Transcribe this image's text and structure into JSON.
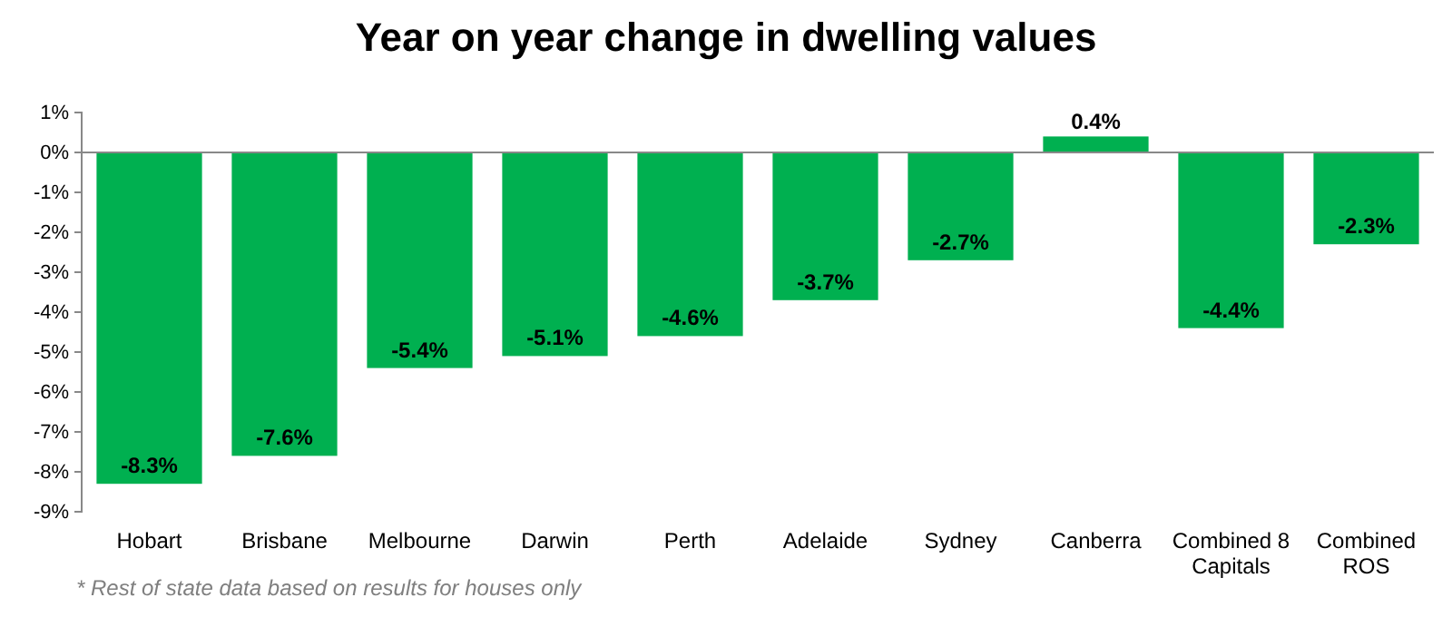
{
  "chart_data": {
    "type": "bar",
    "title": "Year on year change in dwelling values",
    "categories": [
      "Hobart",
      "Brisbane",
      "Melbourne",
      "Darwin",
      "Perth",
      "Adelaide",
      "Sydney",
      "Canberra",
      "Combined 8 Capitals",
      "Combined ROS"
    ],
    "values": [
      -8.3,
      -7.6,
      -5.4,
      -5.1,
      -4.6,
      -3.7,
      -2.7,
      0.4,
      -4.4,
      -2.3
    ],
    "value_labels": [
      "-8.3%",
      "-7.6%",
      "-5.4%",
      "-5.1%",
      "-4.6%",
      "-3.7%",
      "-2.7%",
      "0.4%",
      "-4.4%",
      "-2.3%"
    ],
    "color": "#00b050",
    "ylim": [
      -9,
      1
    ],
    "yticks": [
      {
        "value": 1,
        "label": "1%"
      },
      {
        "value": 0,
        "label": "0%"
      },
      {
        "value": -1,
        "label": "-1%"
      },
      {
        "value": -2,
        "label": "-2%"
      },
      {
        "value": -3,
        "label": "-3%"
      },
      {
        "value": -4,
        "label": "-4%"
      },
      {
        "value": -5,
        "label": "-5%"
      },
      {
        "value": -6,
        "label": "-6%"
      },
      {
        "value": -7,
        "label": "-7%"
      },
      {
        "value": -8,
        "label": "-8%"
      },
      {
        "value": -9,
        "label": "-9%"
      }
    ],
    "annotations": [
      "* Rest of state data based on results for houses only"
    ]
  }
}
